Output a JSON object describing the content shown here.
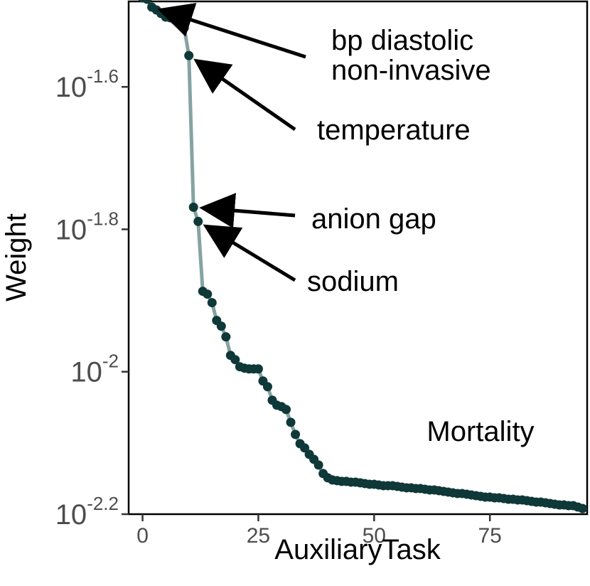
{
  "chart_data": {
    "type": "line",
    "title": "",
    "xlabel": "AuxiliaryTask",
    "ylabel": "Weight",
    "xlim": [
      -3,
      96
    ],
    "ylim": [
      -2.2,
      -1.48
    ],
    "yscale": "log10",
    "grid": false,
    "x_ticks": [
      0,
      25,
      50,
      75
    ],
    "x_tick_labels": [
      "0",
      "25",
      "50",
      "75"
    ],
    "y_ticks": [
      -1.6,
      -1.8,
      -2.0,
      -2.2
    ],
    "y_tick_labels": [
      {
        "base": "10",
        "exp": "-1.6"
      },
      {
        "base": "10",
        "exp": "-1.8"
      },
      {
        "base": "10",
        "exp": "-2"
      },
      {
        "base": "10",
        "exp": "-2.2"
      }
    ],
    "panel_label": "Mortality",
    "series": [
      {
        "line_color": "#86a3a3",
        "point_color": "#0f3838",
        "x": [
          0,
          1,
          2,
          3,
          4,
          5,
          6,
          7,
          8,
          9,
          10,
          11,
          12,
          13,
          14,
          15,
          16,
          17,
          18,
          19,
          20,
          21,
          22,
          23,
          24,
          25,
          26,
          27,
          28,
          29,
          30,
          31,
          32,
          33,
          34,
          35,
          36,
          37,
          38,
          39,
          40,
          41,
          42,
          43,
          44,
          45,
          46,
          47,
          48,
          49,
          50,
          51,
          52,
          53,
          54,
          55,
          56,
          57,
          58,
          59,
          60,
          61,
          62,
          63,
          64,
          65,
          66,
          67,
          68,
          69,
          70,
          71,
          72,
          73,
          74,
          75,
          76,
          77,
          78,
          79,
          80,
          81,
          82,
          83,
          84,
          85,
          86,
          87,
          88,
          89,
          90,
          91,
          92,
          93,
          94,
          95
        ],
        "log10_weight": [
          -1.475,
          -1.477,
          -1.488,
          -1.492,
          -1.497,
          -1.502,
          -1.503,
          -1.506,
          -1.511,
          -1.517,
          -1.556,
          -1.769,
          -1.789,
          -1.887,
          -1.891,
          -1.903,
          -1.928,
          -1.936,
          -1.951,
          -1.977,
          -1.983,
          -1.993,
          -1.995,
          -1.996,
          -1.996,
          -1.996,
          -2.013,
          -2.021,
          -2.04,
          -2.047,
          -2.049,
          -2.053,
          -2.071,
          -2.088,
          -2.101,
          -2.107,
          -2.116,
          -2.123,
          -2.131,
          -2.143,
          -2.149,
          -2.152,
          -2.153,
          -2.154,
          -2.154,
          -2.155,
          -2.155,
          -2.156,
          -2.157,
          -2.158,
          -2.158,
          -2.159,
          -2.16,
          -2.16,
          -2.16,
          -2.161,
          -2.162,
          -2.163,
          -2.163,
          -2.164,
          -2.164,
          -2.165,
          -2.166,
          -2.166,
          -2.167,
          -2.168,
          -2.169,
          -2.17,
          -2.171,
          -2.171,
          -2.172,
          -2.173,
          -2.174,
          -2.175,
          -2.176,
          -2.176,
          -2.177,
          -2.177,
          -2.178,
          -2.179,
          -2.179,
          -2.18,
          -2.18,
          -2.181,
          -2.182,
          -2.183,
          -2.183,
          -2.184,
          -2.185,
          -2.186,
          -2.187,
          -2.187,
          -2.188,
          -2.188,
          -2.19,
          -2.192
        ]
      }
    ],
    "annotations": [
      {
        "lines": [
          "bp diastolic",
          "non-invasive"
        ],
        "target_x": 2,
        "target_index": 2
      },
      {
        "lines": [
          "temperature"
        ],
        "target_x": 10,
        "target_index": 10
      },
      {
        "lines": [
          "anion gap"
        ],
        "target_x": 11,
        "target_index": 11
      },
      {
        "lines": [
          "sodium"
        ],
        "target_x": 12,
        "target_index": 12
      }
    ]
  }
}
